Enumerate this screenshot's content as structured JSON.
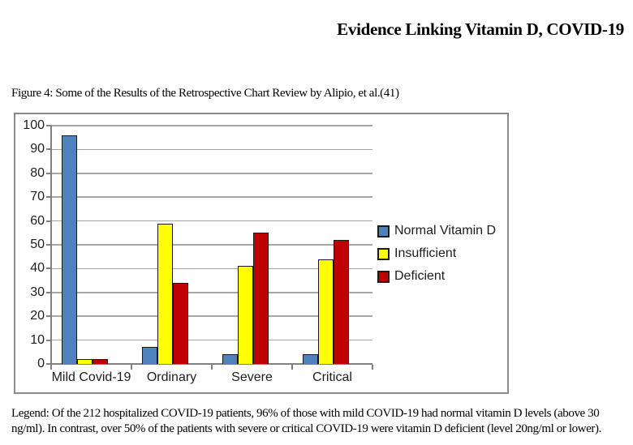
{
  "page": {
    "title": "Evidence Linking Vitamin D, COVID-19",
    "figure_caption": "Figure 4: Some of the Results of the Retrospective Chart Review by Alipio, et al.(41)",
    "legend_note": "Legend: Of the 212 hospitalized COVID-19 patients, 96% of those with mild COVID-19 had normal vitamin D levels (above 30 ng/ml). In contrast, over 50% of the patients with severe or critical COVID-19 were vitamin D deficient (level 20ng/ml or lower)."
  },
  "chart_data": {
    "type": "bar",
    "title": "",
    "categories": [
      "Mild Covid-19",
      "Ordinary",
      "Severe",
      "Critical"
    ],
    "series": [
      {
        "name": "Normal Vitamin D",
        "color": "#4F81BD",
        "values": [
          96,
          7,
          4,
          4
        ]
      },
      {
        "name": "Insufficient",
        "color": "#FFFF00",
        "values": [
          2,
          59,
          41,
          44
        ]
      },
      {
        "name": "Deficient",
        "color": "#C00000",
        "values": [
          2,
          34,
          55,
          52
        ]
      }
    ],
    "xlabel": "",
    "ylabel": "",
    "ylim": [
      0,
      100
    ],
    "ytick_step": 10,
    "grid": true,
    "legend_position": "right",
    "colors": {
      "gridline": "#a6a6a6",
      "axis": "#808080",
      "bar_outline": "#1a1a1a",
      "frame_border": "#8a8a8a"
    }
  }
}
